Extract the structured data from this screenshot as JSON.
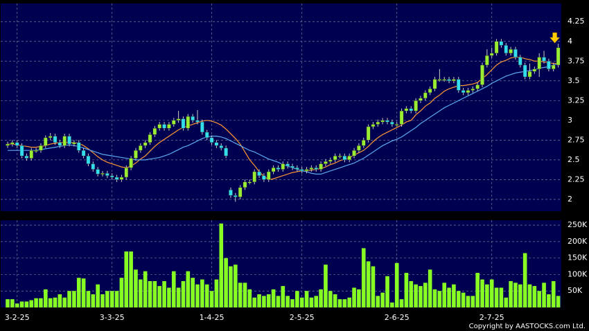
{
  "chart_data": {
    "type": "candlestick",
    "categories": [
      null,
      null,
      "3-2-25",
      null,
      null,
      null,
      null,
      null,
      null,
      null,
      null,
      null,
      null,
      null,
      null,
      null,
      null,
      null,
      null,
      null,
      null,
      null,
      "3-3-25",
      null,
      null,
      null,
      null,
      null,
      null,
      null,
      null,
      null,
      null,
      null,
      null,
      null,
      null,
      null,
      null,
      null,
      null,
      null,
      null,
      "1-4-25",
      null,
      null,
      null,
      null,
      null,
      null,
      null,
      null,
      null,
      null,
      null,
      null,
      null,
      null,
      null,
      null,
      null,
      null,
      "2-5-25",
      null,
      null,
      null,
      null,
      null,
      null,
      null,
      null,
      null,
      null,
      null,
      null,
      null,
      null,
      null,
      null,
      null,
      null,
      null,
      "2-6-25",
      null,
      null,
      null,
      null,
      null,
      null,
      null,
      null,
      null,
      null,
      null,
      null,
      null,
      null,
      null,
      null,
      null,
      null,
      null,
      "2-7-25",
      null,
      null,
      null,
      null,
      null,
      null,
      null,
      null,
      null,
      null,
      null,
      null,
      null,
      null
    ],
    "open": [
      2.68,
      2.7,
      2.72,
      2.68,
      2.55,
      2.52,
      2.62,
      2.62,
      2.68,
      2.78,
      2.8,
      2.72,
      2.68,
      2.8,
      2.7,
      2.72,
      2.62,
      2.55,
      2.45,
      2.38,
      2.32,
      2.33,
      2.3,
      2.28,
      2.25,
      2.28,
      2.4,
      2.52,
      2.62,
      2.68,
      2.72,
      2.82,
      2.9,
      2.95,
      2.9,
      2.95,
      3.0,
      3.02,
      2.9,
      3.05,
      3.0,
      2.98,
      2.85,
      2.78,
      2.72,
      2.68,
      2.65,
      2.12,
      2.05,
      2.03,
      2.15,
      2.22,
      2.22,
      2.35,
      2.3,
      2.25,
      2.35,
      2.4,
      2.38,
      2.45,
      2.42,
      2.4,
      2.38,
      2.36,
      2.38,
      2.4,
      2.38,
      2.45,
      2.48,
      2.5,
      2.55,
      2.55,
      2.5,
      2.55,
      2.62,
      2.68,
      2.75,
      2.92,
      2.95,
      2.98,
      3.0,
      2.98,
      2.95,
      2.95,
      3.12,
      3.15,
      3.12,
      3.25,
      3.28,
      3.35,
      3.4,
      3.52,
      3.52,
      3.52,
      3.5,
      3.52,
      3.38,
      3.35,
      3.38,
      3.4,
      3.45,
      3.7,
      3.82,
      3.85,
      4.0,
      3.95,
      3.85,
      3.9,
      3.8,
      3.7,
      3.55,
      3.62,
      3.65,
      3.8,
      3.75,
      3.65,
      3.7
    ],
    "high": [
      2.73,
      2.75,
      2.75,
      2.71,
      2.58,
      2.65,
      2.65,
      2.71,
      2.81,
      2.84,
      2.83,
      2.75,
      2.83,
      2.83,
      2.75,
      2.75,
      2.65,
      2.58,
      2.48,
      2.41,
      2.36,
      2.36,
      2.33,
      2.31,
      2.31,
      2.43,
      2.55,
      2.65,
      2.71,
      2.75,
      2.85,
      2.93,
      2.98,
      2.98,
      2.98,
      3.03,
      3.12,
      3.05,
      3.08,
      3.08,
      3.13,
      3.01,
      2.88,
      2.81,
      2.75,
      2.71,
      2.68,
      2.15,
      2.08,
      2.18,
      2.25,
      2.25,
      2.38,
      2.38,
      2.33,
      2.38,
      2.43,
      2.43,
      2.48,
      2.48,
      2.45,
      2.43,
      2.41,
      2.41,
      2.43,
      2.43,
      2.48,
      2.51,
      2.53,
      2.58,
      2.58,
      2.58,
      2.58,
      2.65,
      2.71,
      2.78,
      2.95,
      2.98,
      3.01,
      3.03,
      3.03,
      3.01,
      2.98,
      3.15,
      3.18,
      3.18,
      3.28,
      3.31,
      3.38,
      3.43,
      3.55,
      3.65,
      3.55,
      3.55,
      3.55,
      3.55,
      3.41,
      3.41,
      3.43,
      3.48,
      3.73,
      3.9,
      3.92,
      4.03,
      4.03,
      3.98,
      3.93,
      3.93,
      3.83,
      3.73,
      3.72,
      3.68,
      3.85,
      3.88,
      3.78,
      3.73,
      3.97
    ],
    "low": [
      2.65,
      2.67,
      2.65,
      2.52,
      2.49,
      2.49,
      2.59,
      2.59,
      2.65,
      2.75,
      2.69,
      2.65,
      2.65,
      2.67,
      2.67,
      2.59,
      2.52,
      2.42,
      2.35,
      2.29,
      2.29,
      2.27,
      2.25,
      2.22,
      2.22,
      2.25,
      2.37,
      2.49,
      2.59,
      2.65,
      2.69,
      2.79,
      2.87,
      2.87,
      2.87,
      2.92,
      2.97,
      2.87,
      2.87,
      2.97,
      2.95,
      2.82,
      2.75,
      2.69,
      2.65,
      2.62,
      2.52,
      2.02,
      1.97,
      2.0,
      2.12,
      2.19,
      2.19,
      2.27,
      2.22,
      2.22,
      2.32,
      2.35,
      2.35,
      2.39,
      2.37,
      2.35,
      2.33,
      2.33,
      2.35,
      2.35,
      2.35,
      2.42,
      2.45,
      2.47,
      2.52,
      2.47,
      2.47,
      2.52,
      2.59,
      2.65,
      2.72,
      2.89,
      2.92,
      2.95,
      2.95,
      2.92,
      2.92,
      2.92,
      3.09,
      3.09,
      3.09,
      3.22,
      3.25,
      3.32,
      3.37,
      3.49,
      3.49,
      3.47,
      3.47,
      3.35,
      3.32,
      3.32,
      3.35,
      3.37,
      3.42,
      3.67,
      3.79,
      3.82,
      3.92,
      3.82,
      3.82,
      3.77,
      3.67,
      3.52,
      3.52,
      3.59,
      3.55,
      3.72,
      3.62,
      3.62,
      3.67
    ],
    "close": [
      2.7,
      2.72,
      2.68,
      2.55,
      2.52,
      2.62,
      2.62,
      2.68,
      2.78,
      2.8,
      2.72,
      2.68,
      2.8,
      2.7,
      2.72,
      2.62,
      2.55,
      2.45,
      2.38,
      2.32,
      2.33,
      2.3,
      2.28,
      2.25,
      2.28,
      2.4,
      2.52,
      2.62,
      2.68,
      2.72,
      2.82,
      2.9,
      2.95,
      2.9,
      2.95,
      3.0,
      3.02,
      2.9,
      3.05,
      3.0,
      2.98,
      2.85,
      2.78,
      2.72,
      2.68,
      2.65,
      2.55,
      2.05,
      2.03,
      2.15,
      2.22,
      2.22,
      2.35,
      2.3,
      2.25,
      2.35,
      2.4,
      2.38,
      2.45,
      2.42,
      2.4,
      2.38,
      2.36,
      2.38,
      2.4,
      2.38,
      2.45,
      2.48,
      2.5,
      2.55,
      2.55,
      2.5,
      2.55,
      2.62,
      2.68,
      2.75,
      2.92,
      2.95,
      2.98,
      3.0,
      2.98,
      2.95,
      2.95,
      3.12,
      3.15,
      3.12,
      3.25,
      3.28,
      3.35,
      3.4,
      3.52,
      3.52,
      3.52,
      3.5,
      3.52,
      3.38,
      3.35,
      3.38,
      3.4,
      3.45,
      3.7,
      3.82,
      3.85,
      4.0,
      3.95,
      3.85,
      3.9,
      3.8,
      3.7,
      3.55,
      3.62,
      3.65,
      3.8,
      3.75,
      3.65,
      3.7,
      3.92
    ],
    "series": [
      {
        "color": "#ff9933",
        "values": [
          2.7,
          2.7,
          2.69,
          2.68,
          2.67,
          2.66,
          2.66,
          2.67,
          2.68,
          2.7,
          2.71,
          2.72,
          2.72,
          2.72,
          2.72,
          2.71,
          2.68,
          2.64,
          2.59,
          2.54,
          2.5,
          2.47,
          2.45,
          2.43,
          2.41,
          2.4,
          2.42,
          2.46,
          2.51,
          2.55,
          2.61,
          2.67,
          2.72,
          2.76,
          2.8,
          2.84,
          2.88,
          2.91,
          2.93,
          2.95,
          2.97,
          2.99,
          3.0,
          2.99,
          2.97,
          2.94,
          2.89,
          2.83,
          2.77,
          2.7,
          2.6,
          2.5,
          2.43,
          2.35,
          2.29,
          2.25,
          2.26,
          2.28,
          2.3,
          2.32,
          2.34,
          2.35,
          2.36,
          2.36,
          2.37,
          2.38,
          2.39,
          2.41,
          2.44,
          2.46,
          2.49,
          2.51,
          2.53,
          2.56,
          2.59,
          2.62,
          2.67,
          2.73,
          2.78,
          2.82,
          2.85,
          2.88,
          2.91,
          2.94,
          2.98,
          3.0,
          3.07,
          3.12,
          3.18,
          3.22,
          3.28,
          3.32,
          3.37,
          3.4,
          3.42,
          3.44,
          3.44,
          3.45,
          3.46,
          3.48,
          3.53,
          3.58,
          3.64,
          3.7,
          3.74,
          3.76,
          3.79,
          3.8,
          3.8,
          3.78,
          3.77,
          3.75,
          3.75,
          3.74,
          3.73,
          3.72,
          3.72
        ]
      },
      {
        "color": "#5aaaf0",
        "values": [
          2.62,
          2.62,
          2.62,
          2.62,
          2.62,
          2.62,
          2.62,
          2.63,
          2.64,
          2.65,
          2.66,
          2.67,
          2.68,
          2.69,
          2.68,
          2.67,
          2.65,
          2.63,
          2.61,
          2.59,
          2.57,
          2.56,
          2.55,
          2.54,
          2.53,
          2.52,
          2.51,
          2.5,
          2.5,
          2.5,
          2.51,
          2.52,
          2.53,
          2.55,
          2.57,
          2.6,
          2.63,
          2.66,
          2.68,
          2.71,
          2.74,
          2.77,
          2.79,
          2.8,
          2.8,
          2.79,
          2.77,
          2.74,
          2.71,
          2.68,
          2.65,
          2.62,
          2.6,
          2.57,
          2.54,
          2.51,
          2.49,
          2.47,
          2.44,
          2.42,
          2.4,
          2.38,
          2.36,
          2.35,
          2.33,
          2.32,
          2.32,
          2.34,
          2.36,
          2.38,
          2.4,
          2.42,
          2.44,
          2.46,
          2.49,
          2.52,
          2.56,
          2.6,
          2.64,
          2.68,
          2.71,
          2.74,
          2.76,
          2.79,
          2.83,
          2.87,
          2.91,
          2.96,
          3.0,
          3.04,
          3.08,
          3.12,
          3.16,
          3.19,
          3.22,
          3.25,
          3.28,
          3.31,
          3.34,
          3.37,
          3.4,
          3.43,
          3.47,
          3.5,
          3.53,
          3.56,
          3.58,
          3.6,
          3.61,
          3.62,
          3.63,
          3.64,
          3.66,
          3.67,
          3.68,
          3.7,
          3.72
        ]
      }
    ],
    "volume": [
      25000,
      25000,
      12000,
      18000,
      18000,
      22000,
      28000,
      28000,
      55000,
      28000,
      30000,
      40000,
      30000,
      50000,
      50000,
      90000,
      88000,
      50000,
      40000,
      70000,
      40000,
      50000,
      50000,
      50000,
      90000,
      170000,
      170000,
      115000,
      85000,
      110000,
      80000,
      80000,
      65000,
      80000,
      60000,
      110000,
      60000,
      80000,
      110000,
      90000,
      70000,
      85000,
      70000,
      50000,
      85000,
      255000,
      150000,
      125000,
      130000,
      75000,
      75000,
      55000,
      30000,
      40000,
      35000,
      40000,
      55000,
      35000,
      65000,
      35000,
      25000,
      50000,
      30000,
      50000,
      30000,
      35000,
      55000,
      130000,
      50000,
      40000,
      25000,
      25000,
      30000,
      60000,
      55000,
      180000,
      140000,
      125000,
      35000,
      45000,
      95000,
      15000,
      135000,
      25000,
      105000,
      80000,
      70000,
      65000,
      75000,
      115000,
      55000,
      50000,
      75000,
      60000,
      70000,
      50000,
      45000,
      35000,
      35000,
      105000,
      85000,
      70000,
      85000,
      60000,
      60000,
      30000,
      80000,
      75000,
      70000,
      165000,
      70000,
      65000,
      50000,
      75000,
      40000,
      80000,
      35000
    ],
    "ylim": [
      1.85,
      4.48
    ],
    "yticks": [
      2,
      2.25,
      2.5,
      2.75,
      3,
      3.25,
      3.5,
      3.75,
      4,
      4.25
    ],
    "volume_ylim": [
      0,
      265000
    ],
    "volume_ticks": [
      {
        "value": 50000,
        "label": "50K"
      },
      {
        "value": 100000,
        "label": "100K"
      },
      {
        "value": 150000,
        "label": "150K"
      },
      {
        "value": 200000,
        "label": "200K"
      },
      {
        "value": 250000,
        "label": "250K"
      }
    ],
    "up_color": "#99ee33",
    "down_color": "#33ddee",
    "volume_color": "#88ff22",
    "grid": true,
    "copyright": "Copyright by AASTOCKS.com Ltd."
  }
}
